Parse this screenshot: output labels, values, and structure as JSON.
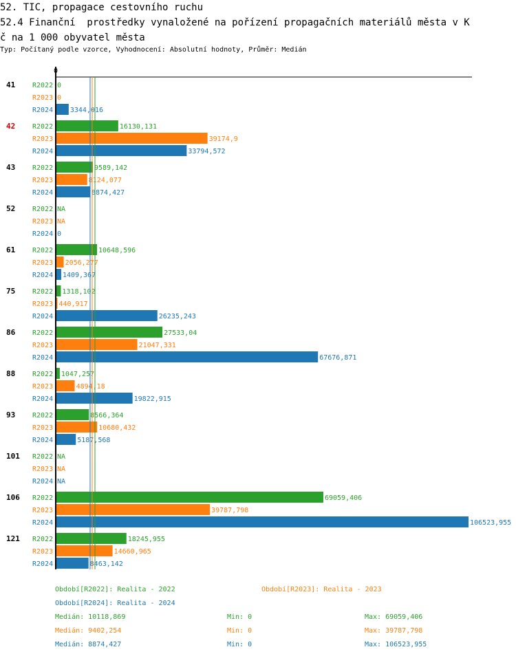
{
  "header": {
    "title_line1": "52. TIC, propagace cestovního ruchu",
    "title_line2": "52.4 Finanční  prostředky vynaložené na pořízení propagačních materiálů města v K",
    "title_line3": "č na 1 000 obyvatel města",
    "subtitle": "Typ: Počítaný podle vzorce, Vyhodnocení: Absolutní hodnoty, Průměr: Medián"
  },
  "colors": {
    "R2022": "#2ca02c",
    "R2023": "#ff7f0e",
    "R2024": "#1f77b4",
    "highlight": "#cc0000"
  },
  "chart_data": {
    "type": "bar",
    "orientation": "horizontal",
    "axis_zero_label": "0",
    "xlim": [
      0,
      106523.955
    ],
    "series_names": [
      "R2022",
      "R2023",
      "R2024"
    ],
    "groups": [
      {
        "label": "41",
        "highlight": false,
        "values": [
          0,
          0,
          3344.016
        ],
        "labels": [
          "0",
          "0",
          "3344,016"
        ]
      },
      {
        "label": "42",
        "highlight": true,
        "values": [
          16130.131,
          39174.9,
          33794.572
        ],
        "labels": [
          "16130,131",
          "39174,9",
          "33794,572"
        ]
      },
      {
        "label": "43",
        "highlight": false,
        "values": [
          9589.142,
          8124.077,
          8874.427
        ],
        "labels": [
          "9589,142",
          "8124,077",
          "8874,427"
        ]
      },
      {
        "label": "52",
        "highlight": false,
        "values": [
          null,
          null,
          0
        ],
        "labels": [
          "NA",
          "NA",
          "0"
        ]
      },
      {
        "label": "61",
        "highlight": false,
        "values": [
          10648.596,
          2056.277,
          1409.367
        ],
        "labels": [
          "10648,596",
          "2056,277",
          "1409,367"
        ]
      },
      {
        "label": "75",
        "highlight": false,
        "values": [
          1318.102,
          440.917,
          26235.243
        ],
        "labels": [
          "1318,102",
          "440,917",
          "26235,243"
        ]
      },
      {
        "label": "86",
        "highlight": false,
        "values": [
          27533.04,
          21047.331,
          67676.871
        ],
        "labels": [
          "27533,04",
          "21047,331",
          "67676,871"
        ]
      },
      {
        "label": "88",
        "highlight": false,
        "values": [
          1047.257,
          4894.18,
          19822.915
        ],
        "labels": [
          "1047,257",
          "4894,18",
          "19822,915"
        ]
      },
      {
        "label": "93",
        "highlight": false,
        "values": [
          8566.364,
          10680.432,
          5187.568
        ],
        "labels": [
          "8566,364",
          "10680,432",
          "5187,568"
        ]
      },
      {
        "label": "101",
        "highlight": false,
        "values": [
          null,
          null,
          null
        ],
        "labels": [
          "NA",
          "NA",
          "NA"
        ]
      },
      {
        "label": "106",
        "highlight": false,
        "values": [
          69059.406,
          39787.798,
          106523.955
        ],
        "labels": [
          "69059,406",
          "39787,798",
          "106523,955"
        ]
      },
      {
        "label": "121",
        "highlight": false,
        "values": [
          18245.955,
          14660.965,
          8463.142
        ],
        "labels": [
          "18245,955",
          "14660,965",
          "8463,142"
        ]
      }
    ],
    "medians": [
      10118.869,
      9402.254,
      8874.427
    ],
    "legend": [
      {
        "series": "R2022",
        "text": "Období[R2022]: Realita - 2022"
      },
      {
        "series": "R2023",
        "text": "Období[R2023]: Realita - 2023"
      },
      {
        "series": "R2024",
        "text": "Období[R2024]: Realita - 2024"
      }
    ],
    "stats": [
      {
        "series": "R2022",
        "median": "Medián: 10118,869",
        "min": "Min: 0",
        "max": "Max: 69059,406"
      },
      {
        "series": "R2023",
        "median": "Medián: 9402,254",
        "min": "Min: 0",
        "max": "Max: 39787,798"
      },
      {
        "series": "R2024",
        "median": "Medián: 8874,427",
        "min": "Min: 0",
        "max": "Max: 106523,955"
      }
    ]
  }
}
